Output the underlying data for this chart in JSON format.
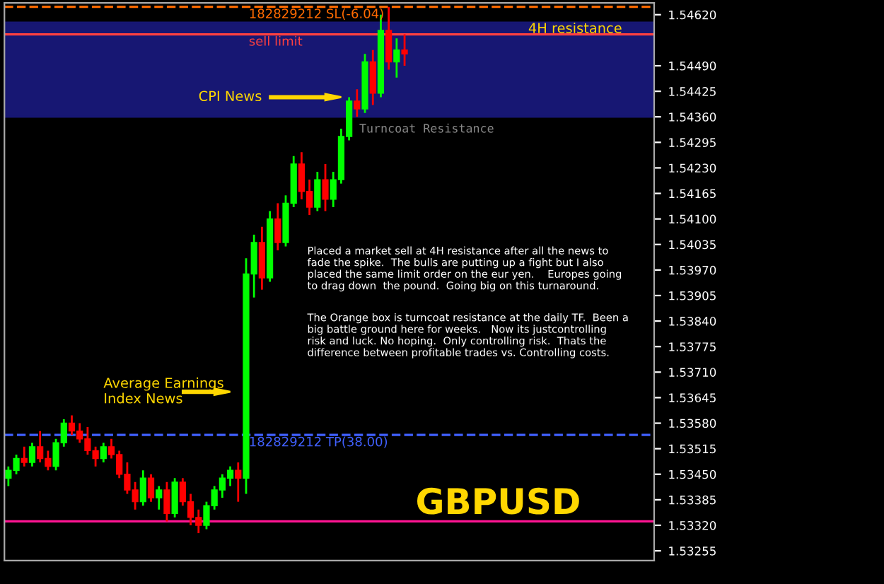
{
  "chart_data": {
    "type": "candlestick",
    "title": "GBPUSD",
    "categories": [
      null,
      null,
      null,
      null,
      null,
      null,
      null,
      null,
      null,
      null,
      null,
      null,
      null,
      null,
      null,
      null,
      null,
      null,
      null,
      null,
      null,
      null,
      null,
      null,
      null,
      null,
      null,
      null,
      null,
      null,
      null,
      null,
      null,
      null,
      null,
      null,
      null,
      null,
      null,
      null,
      null,
      null,
      null,
      null,
      null,
      null,
      null,
      null,
      null,
      null,
      null,
      null,
      null,
      null,
      null,
      null,
      null,
      null,
      null,
      null,
      null,
      null,
      null,
      null,
      null,
      null,
      null,
      null,
      null,
      null,
      null,
      null,
      null,
      null,
      null,
      null,
      null,
      null,
      null,
      null,
      null,
      null
    ],
    "ohlc": [
      [
        1.5344,
        1.5347,
        1.5342,
        1.5346
      ],
      [
        1.5346,
        1.535,
        1.5345,
        1.5349
      ],
      [
        1.5349,
        1.5352,
        1.5347,
        1.5348
      ],
      [
        1.5348,
        1.5353,
        1.5347,
        1.5352
      ],
      [
        1.5352,
        1.5356,
        1.5348,
        1.5349
      ],
      [
        1.5349,
        1.5351,
        1.5346,
        1.5347
      ],
      [
        1.5347,
        1.5354,
        1.5346,
        1.5353
      ],
      [
        1.5353,
        1.5359,
        1.5352,
        1.5358
      ],
      [
        1.5358,
        1.536,
        1.5355,
        1.5356
      ],
      [
        1.5356,
        1.5358,
        1.5353,
        1.5354
      ],
      [
        1.5354,
        1.5357,
        1.535,
        1.5351
      ],
      [
        1.5351,
        1.5352,
        1.5347,
        1.5349
      ],
      [
        1.5349,
        1.5353,
        1.5348,
        1.5352
      ],
      [
        1.5352,
        1.5354,
        1.5349,
        1.535
      ],
      [
        1.535,
        1.5351,
        1.5344,
        1.5345
      ],
      [
        1.5345,
        1.5348,
        1.534,
        1.5341
      ],
      [
        1.5341,
        1.5343,
        1.5336,
        1.5338
      ],
      [
        1.5338,
        1.5346,
        1.5337,
        1.5344
      ],
      [
        1.5344,
        1.5345,
        1.5338,
        1.5339
      ],
      [
        1.5339,
        1.5342,
        1.5336,
        1.5341
      ],
      [
        1.5341,
        1.5343,
        1.5333,
        1.5335
      ],
      [
        1.5335,
        1.5344,
        1.5334,
        1.5343
      ],
      [
        1.5343,
        1.5344,
        1.5337,
        1.5338
      ],
      [
        1.5338,
        1.534,
        1.5332,
        1.5334
      ],
      [
        1.5334,
        1.5336,
        1.533,
        1.5332
      ],
      [
        1.5332,
        1.5338,
        1.5331,
        1.5337
      ],
      [
        1.5337,
        1.5342,
        1.5336,
        1.5341
      ],
      [
        1.5341,
        1.5345,
        1.5339,
        1.5344
      ],
      [
        1.5344,
        1.5347,
        1.5342,
        1.5346
      ],
      [
        1.5346,
        1.5348,
        1.5338,
        1.5344
      ],
      [
        1.5344,
        1.54,
        1.534,
        1.5396
      ],
      [
        1.5396,
        1.5406,
        1.539,
        1.5404
      ],
      [
        1.5404,
        1.5408,
        1.5392,
        1.5395
      ],
      [
        1.5395,
        1.5412,
        1.5394,
        1.541
      ],
      [
        1.541,
        1.5414,
        1.5402,
        1.5404
      ],
      [
        1.5404,
        1.5416,
        1.5403,
        1.5414
      ],
      [
        1.5414,
        1.5426,
        1.5413,
        1.5424
      ],
      [
        1.5424,
        1.5427,
        1.5415,
        1.5417
      ],
      [
        1.5417,
        1.542,
        1.5411,
        1.5413
      ],
      [
        1.5413,
        1.5422,
        1.5412,
        1.542
      ],
      [
        1.542,
        1.5424,
        1.5412,
        1.5415
      ],
      [
        1.5415,
        1.5422,
        1.5413,
        1.542
      ],
      [
        1.542,
        1.5433,
        1.5419,
        1.5431
      ],
      [
        1.5431,
        1.5441,
        1.543,
        1.544
      ],
      [
        1.544,
        1.5443,
        1.5436,
        1.5438
      ],
      [
        1.5438,
        1.5452,
        1.5437,
        1.545
      ],
      [
        1.545,
        1.5453,
        1.5439,
        1.5442
      ],
      [
        1.5442,
        1.5462,
        1.5441,
        1.5458
      ],
      [
        1.5458,
        1.5464,
        1.5448,
        1.545
      ],
      [
        1.545,
        1.5456,
        1.5446,
        1.5453
      ],
      [
        1.5453,
        1.5457,
        1.5449,
        1.5452
      ],
      null,
      null,
      null,
      null,
      null,
      null,
      null,
      null,
      null,
      null,
      null,
      null,
      null,
      null,
      null,
      null,
      null,
      null,
      null,
      null,
      null,
      null,
      null,
      null,
      null,
      null,
      null,
      null,
      null,
      null,
      null
    ],
    "ylim": [
      1.5323,
      1.5465
    ],
    "yticks": [
      {
        "value": 1.53255,
        "label": "1.53255"
      },
      {
        "value": 1.5332,
        "label": "1.53320"
      },
      {
        "value": 1.53385,
        "label": "1.53385"
      },
      {
        "value": 1.5345,
        "label": "1.53450"
      },
      {
        "value": 1.53515,
        "label": "1.53515"
      },
      {
        "value": 1.5358,
        "label": "1.53580"
      },
      {
        "value": 1.53645,
        "label": "1.53645"
      },
      {
        "value": 1.5371,
        "label": "1.53710"
      },
      {
        "value": 1.53775,
        "label": "1.53775"
      },
      {
        "value": 1.5384,
        "label": "1.53840"
      },
      {
        "value": 1.53905,
        "label": "1.53905"
      },
      {
        "value": 1.5397,
        "label": "1.53970"
      },
      {
        "value": 1.54035,
        "label": "1.54035"
      },
      {
        "value": 1.541,
        "label": "1.54100"
      },
      {
        "value": 1.54165,
        "label": "1.54165"
      },
      {
        "value": 1.5423,
        "label": "1.54230"
      },
      {
        "value": 1.54295,
        "label": "1.54295"
      },
      {
        "value": 1.5436,
        "label": "1.54360"
      },
      {
        "value": 1.54425,
        "label": "1.54425"
      },
      {
        "value": 1.5449,
        "label": "1.54490"
      },
      {
        "value": 1.5462,
        "label": "1.54620"
      }
    ],
    "grid": false,
    "legend": false,
    "bands": [
      {
        "axis": "y",
        "from": 1.5436,
        "to": 1.546,
        "label": "4H resistance",
        "color": "#1a1a80"
      }
    ],
    "ref_lines": [
      {
        "axis": "y",
        "value": 1.5457,
        "label": "sell limit",
        "color": "#ff4040",
        "line_style": "solid"
      },
      {
        "axis": "y",
        "value": 1.5464,
        "label": "182829212 SL(-6.04)",
        "color": "#ff6a00",
        "line_style": "dashed"
      },
      {
        "axis": "y",
        "value": 1.5355,
        "label": "182829212 TP(38.00)",
        "color": "#4060ff",
        "line_style": "dashed"
      },
      {
        "axis": "y",
        "value": 1.5333,
        "label": null,
        "color": "#ff1493",
        "line_style": "solid"
      }
    ],
    "annotations": [
      "CPI News",
      "Average Earnings\nIndex News",
      "Turncoat Resistance",
      "Placed a market sell at 4H resistance after all the news to\nfade the spike.  The bulls are putting up a fight but I also\nplaced the same limit order on the eur yen.    Europes going\nto drag down  the pound.  Going big on this turnaround.",
      "The Orange box is turncoat resistance at the daily TF.  Been a\nbig battle ground here for weeks.   Now its justcontrolling\nrisk and luck. No hoping.  Only controlling risk.  Thats the\ndifference between profitable trades vs. Controlling costs."
    ]
  }
}
